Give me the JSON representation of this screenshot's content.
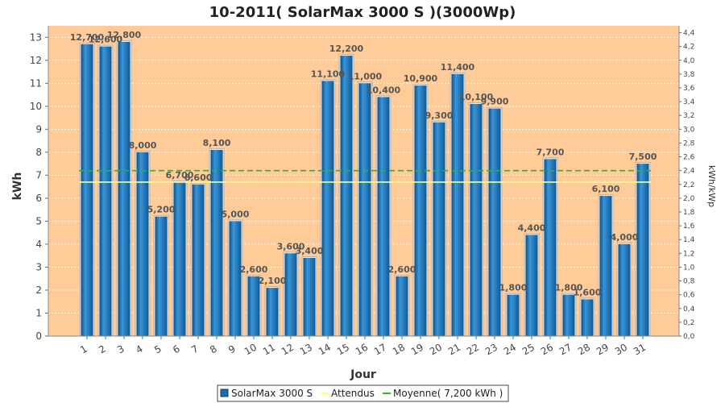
{
  "chart_data": {
    "type": "bar",
    "title": "10-2011( SolarMax 3000 S )(3000Wp)",
    "xlabel": "Jour",
    "ylabel": "kWh",
    "ylabel_right": "kWh/kWp",
    "ylim": [
      0,
      13.5
    ],
    "ylim_right": [
      0,
      4.5
    ],
    "yticks": [
      0,
      1,
      2,
      3,
      4,
      5,
      6,
      7,
      8,
      9,
      10,
      11,
      12,
      13
    ],
    "yticks_right": [
      "0,0",
      "0,2",
      "0,4",
      "0,6",
      "0,8",
      "1,0",
      "1,2",
      "1,4",
      "1,6",
      "1,8",
      "2,0",
      "2,2",
      "2,4",
      "2,6",
      "2,8",
      "3,0",
      "3,2",
      "3,4",
      "3,6",
      "3,8",
      "4,0",
      "4,2",
      "4,4"
    ],
    "categories": [
      "1",
      "2",
      "3",
      "4",
      "5",
      "6",
      "7",
      "8",
      "9",
      "10",
      "11",
      "12",
      "13",
      "14",
      "15",
      "16",
      "17",
      "18",
      "19",
      "20",
      "21",
      "22",
      "23",
      "24",
      "25",
      "26",
      "27",
      "28",
      "29",
      "30",
      "31"
    ],
    "series": [
      {
        "name": "SolarMax 3000 S",
        "values": [
          12.7,
          12.6,
          12.8,
          8.0,
          5.2,
          6.7,
          6.6,
          8.1,
          5.0,
          2.6,
          2.1,
          3.6,
          3.4,
          11.1,
          12.2,
          11.0,
          10.4,
          2.6,
          10.9,
          9.3,
          11.4,
          10.1,
          9.9,
          1.8,
          4.4,
          7.7,
          1.8,
          1.6,
          6.1,
          4.0,
          7.5
        ],
        "labels": [
          "12,700",
          "12,600",
          "12,800",
          "8,000",
          "5,200",
          "6,700",
          "6,600",
          "8,100",
          "5,000",
          "2,600",
          "2,100",
          "3,600",
          "3,400",
          "11,100",
          "12,200",
          "11,000",
          "10,400",
          "2,600",
          "10,900",
          "9,300",
          "11,400",
          "10,100",
          "9,900",
          "1,800",
          "4,400",
          "7,700",
          "1,800",
          "1,600",
          "6,100",
          "4,000",
          "7,500"
        ],
        "color": "#1a6fb0"
      }
    ],
    "lines": [
      {
        "name": "Attendus",
        "value": 6.7,
        "color": "#ffff99"
      },
      {
        "name": "Moyenne( 7,200 kWh )",
        "value": 7.2,
        "color": "#22bb22"
      }
    ],
    "background": "#ffcc99",
    "grid": true,
    "legend": "bottom"
  }
}
